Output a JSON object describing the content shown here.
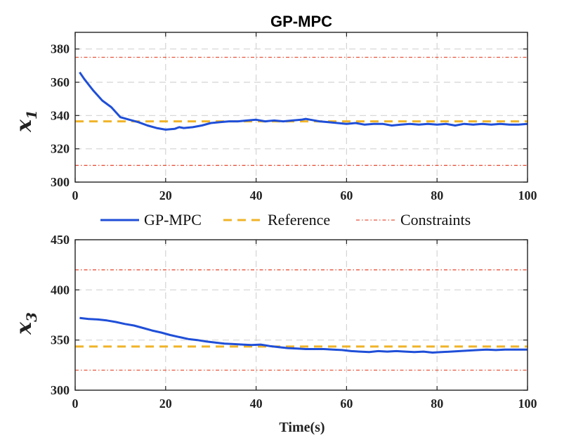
{
  "chart_data": [
    {
      "type": "line",
      "title": "GP-MPC",
      "ylabel": "x",
      "ylabel_sub": "1",
      "xlabel": "",
      "xlim": [
        0,
        100
      ],
      "ylim": [
        300,
        390
      ],
      "xticks": [
        0,
        20,
        40,
        60,
        80,
        100
      ],
      "yticks": [
        300,
        320,
        340,
        360,
        380
      ],
      "grid": true,
      "series": [
        {
          "name": "GP-MPC",
          "color": "#1f4fd8",
          "style": "solid",
          "x": [
            1,
            2,
            4,
            6,
            8,
            10,
            12,
            14,
            16,
            18,
            20,
            22,
            23,
            24,
            26,
            28,
            30,
            32,
            34,
            36,
            38,
            40,
            42,
            44,
            46,
            48,
            50,
            51,
            52,
            54,
            56,
            58,
            60,
            62,
            64,
            66,
            68,
            70,
            72,
            74,
            76,
            78,
            80,
            82,
            84,
            86,
            88,
            90,
            92,
            94,
            96,
            98,
            100
          ],
          "y": [
            366,
            362,
            355,
            349,
            345,
            339,
            337.5,
            336,
            334,
            332.5,
            331.5,
            332,
            333,
            332.5,
            333,
            334,
            335.5,
            336,
            336.5,
            336.5,
            337,
            337.5,
            336.5,
            337,
            336.5,
            337,
            337.5,
            338,
            337.5,
            336.5,
            336,
            335.5,
            335,
            335.5,
            334.5,
            335,
            335,
            334,
            334.5,
            335,
            334.5,
            335,
            334.5,
            335,
            334,
            335,
            334.5,
            335,
            334.5,
            335,
            334.5,
            334.5,
            335
          ]
        },
        {
          "name": "Reference",
          "color": "#f0b429",
          "style": "dashed",
          "x": [
            0,
            100
          ],
          "y": [
            336.5,
            336.5
          ]
        },
        {
          "name": "Constraints",
          "color": "#e8553e",
          "style": "dashdot",
          "x": [
            0,
            100
          ],
          "y": [
            375,
            375
          ]
        },
        {
          "name": "Constraints",
          "color": "#e8553e",
          "style": "dashdot",
          "x": [
            0,
            100
          ],
          "y": [
            310,
            310
          ]
        }
      ]
    },
    {
      "type": "line",
      "title": "",
      "ylabel": "x",
      "ylabel_sub": "3",
      "xlabel": "Time(s)",
      "xlim": [
        0,
        100
      ],
      "ylim": [
        300,
        450
      ],
      "xticks": [
        0,
        20,
        40,
        60,
        80,
        100
      ],
      "yticks": [
        300,
        350,
        400,
        450
      ],
      "grid": true,
      "series": [
        {
          "name": "GP-MPC",
          "color": "#1f4fd8",
          "style": "solid",
          "x": [
            1,
            3,
            5,
            7,
            9,
            11,
            13,
            15,
            17,
            19,
            21,
            23,
            25,
            27,
            29,
            31,
            33,
            35,
            37,
            39,
            41,
            43,
            45,
            47,
            49,
            51,
            53,
            55,
            57,
            59,
            61,
            63,
            65,
            67,
            69,
            71,
            73,
            75,
            77,
            79,
            81,
            83,
            85,
            87,
            89,
            91,
            93,
            95,
            97,
            100
          ],
          "y": [
            372,
            371,
            370.5,
            369.5,
            368,
            366,
            364.5,
            362,
            359.5,
            357.5,
            355,
            353,
            351,
            350,
            348.5,
            347.5,
            346.5,
            346,
            345.5,
            345,
            345.5,
            344,
            343,
            342,
            341.5,
            341,
            341,
            341,
            340.5,
            340,
            339,
            338.5,
            338,
            339,
            338.5,
            339,
            338.5,
            338,
            338.5,
            337.5,
            338,
            338.5,
            339,
            339.5,
            340,
            340.5,
            340,
            340.5,
            340.5,
            340.5
          ]
        },
        {
          "name": "Reference",
          "color": "#f0b429",
          "style": "dashed",
          "x": [
            0,
            100
          ],
          "y": [
            343.5,
            343.5
          ]
        },
        {
          "name": "Constraints",
          "color": "#e8553e",
          "style": "dashdot",
          "x": [
            0,
            100
          ],
          "y": [
            420,
            420
          ]
        },
        {
          "name": "Constraints",
          "color": "#e8553e",
          "style": "dashdot",
          "x": [
            0,
            100
          ],
          "y": [
            320,
            320
          ]
        }
      ]
    }
  ],
  "legend": {
    "placement": "between-panels",
    "entries": [
      {
        "label": "GP-MPC",
        "color": "#1f4fd8",
        "style": "solid"
      },
      {
        "label": "Reference",
        "color": "#f0b429",
        "style": "dashed"
      },
      {
        "label": "Constraints",
        "color": "#e8553e",
        "style": "dashdot"
      }
    ]
  }
}
